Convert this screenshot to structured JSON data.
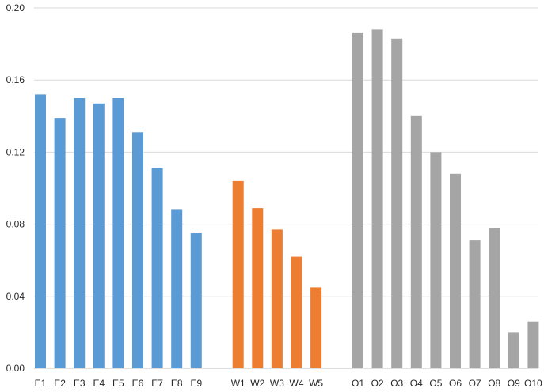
{
  "chart_data": {
    "type": "bar",
    "title": "",
    "xlabel": "",
    "ylabel": "",
    "ylim": [
      0,
      0.2
    ],
    "yticks": [
      "0.00",
      "0.04",
      "0.08",
      "0.12",
      "0.16",
      "0.20"
    ],
    "grid": true,
    "legend": "none",
    "groups": [
      {
        "color": "#5b9bd5",
        "categories": [
          "E1",
          "E2",
          "E3",
          "E4",
          "E5",
          "E6",
          "E7",
          "E8",
          "E9"
        ],
        "values": [
          0.152,
          0.139,
          0.15,
          0.147,
          0.15,
          0.131,
          0.111,
          0.088,
          0.075
        ]
      },
      {
        "color": "#ed7d31",
        "categories": [
          "W1",
          "W2",
          "W3",
          "W4",
          "W5"
        ],
        "values": [
          0.104,
          0.089,
          0.077,
          0.062,
          0.045
        ]
      },
      {
        "color": "#a5a5a5",
        "categories": [
          "O1",
          "O2",
          "O3",
          "O4",
          "O5",
          "O6",
          "O7",
          "O8",
          "O9",
          "O10"
        ],
        "values": [
          0.186,
          0.188,
          0.183,
          0.14,
          0.12,
          0.108,
          0.071,
          0.078,
          0.02,
          0.026
        ]
      }
    ]
  }
}
